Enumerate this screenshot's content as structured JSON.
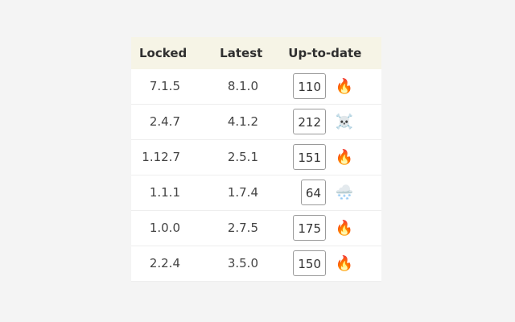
{
  "table": {
    "headers": {
      "locked": "Locked",
      "latest": "Latest",
      "uptodate": "Up-to-date"
    },
    "rows": [
      {
        "locked": "7.1.5",
        "latest": "8.1.0",
        "days": "110",
        "icon": "🔥",
        "icon_name": "fire-icon"
      },
      {
        "locked": "2.4.7",
        "latest": "4.1.2",
        "days": "212",
        "icon": "☠️",
        "icon_name": "skull-crossbones-icon"
      },
      {
        "locked": "1.12.7",
        "latest": "2.5.1",
        "days": "151",
        "icon": "🔥",
        "icon_name": "fire-icon"
      },
      {
        "locked": "1.1.1",
        "latest": "1.7.4",
        "days": "64",
        "icon": "🌨️",
        "icon_name": "cloud-snow-icon"
      },
      {
        "locked": "1.0.0",
        "latest": "2.7.5",
        "days": "175",
        "icon": "🔥",
        "icon_name": "fire-icon"
      },
      {
        "locked": "2.2.4",
        "latest": "3.5.0",
        "days": "150",
        "icon": "🔥",
        "icon_name": "fire-icon"
      }
    ]
  },
  "colors": {
    "page_background": "#f4f4f4",
    "header_background": "#f6f4e6",
    "card_background": "#ffffff",
    "badge_border": "#9a9a9a"
  }
}
